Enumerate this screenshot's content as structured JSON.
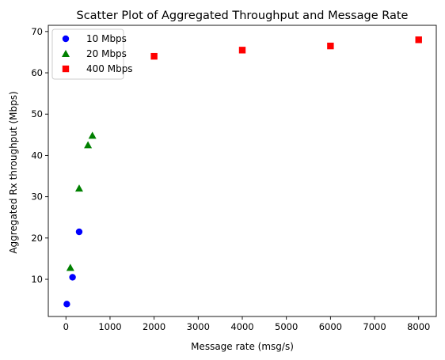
{
  "chart_data": {
    "type": "scatter",
    "title": "Scatter Plot of Aggregated Throughput and Message Rate",
    "xlabel": "Message rate (msg/s)",
    "ylabel": "Aggregated Rx throughput (Mbps)",
    "xlim": [
      -400,
      8400
    ],
    "ylim": [
      1,
      71.5
    ],
    "xticks": [
      0,
      1000,
      2000,
      3000,
      4000,
      5000,
      6000,
      7000,
      8000
    ],
    "yticks": [
      10,
      20,
      30,
      40,
      50,
      60,
      70
    ],
    "grid": false,
    "legend_position": "top-left",
    "series": [
      {
        "name": "10 Mbps",
        "marker": "circle",
        "color": "#0000ff",
        "points": [
          {
            "x": 20,
            "y": 4.0
          },
          {
            "x": 150,
            "y": 10.5
          },
          {
            "x": 300,
            "y": 21.5
          }
        ]
      },
      {
        "name": "20 Mbps",
        "marker": "triangle",
        "color": "#008000",
        "points": [
          {
            "x": 100,
            "y": 12.8
          },
          {
            "x": 300,
            "y": 32.0
          },
          {
            "x": 500,
            "y": 42.5
          },
          {
            "x": 600,
            "y": 44.8
          }
        ]
      },
      {
        "name": "400 Mbps",
        "marker": "square",
        "color": "#ff0000",
        "points": [
          {
            "x": 2000,
            "y": 64.0
          },
          {
            "x": 4000,
            "y": 65.5
          },
          {
            "x": 6000,
            "y": 66.5
          },
          {
            "x": 8000,
            "y": 68.0
          }
        ]
      }
    ]
  }
}
